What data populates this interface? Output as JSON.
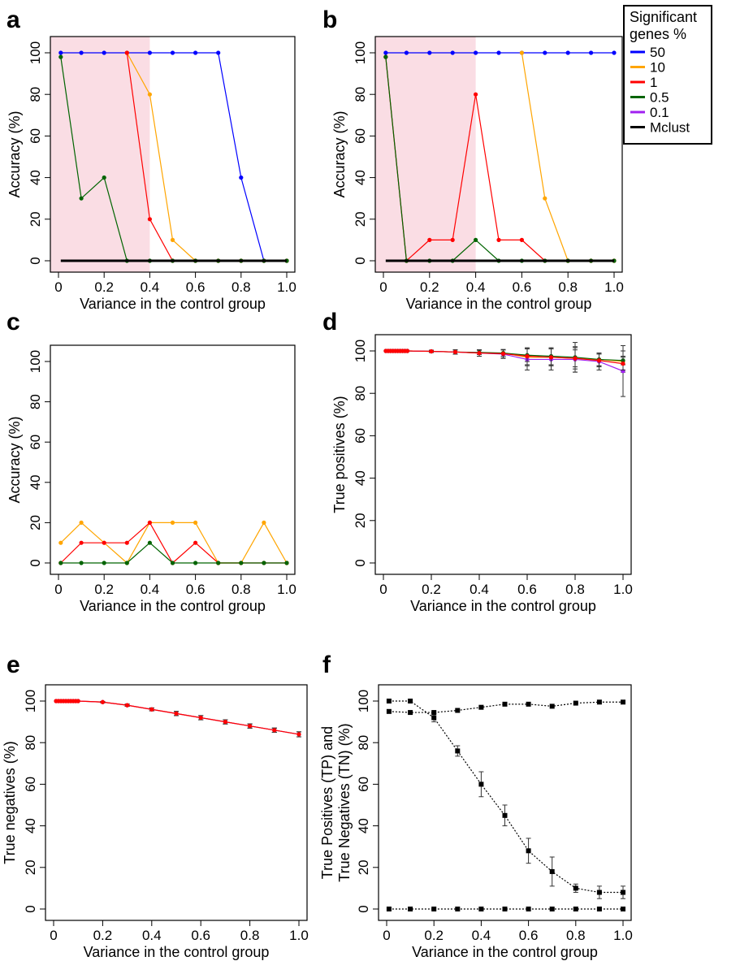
{
  "legend": {
    "title_line1": "Significant",
    "title_line2": "genes %",
    "entries": [
      {
        "label": "50",
        "color": "#0000ff"
      },
      {
        "label": "10",
        "color": "#ffa500"
      },
      {
        "label": "1",
        "color": "#ff0000"
      },
      {
        "label": "0.5",
        "color": "#006400"
      },
      {
        "label": "0.1",
        "color": "#a020f0"
      },
      {
        "label": "Mclust",
        "color": "#000000"
      }
    ]
  },
  "chart_data": [
    {
      "panel": "a",
      "type": "line",
      "xlabel": "Variance in the control group",
      "ylabel": "Accuracy (%)",
      "xlim": [
        0,
        1
      ],
      "ylim": [
        0,
        100
      ],
      "xticks": [
        "0",
        "0.2",
        "0.4",
        "0.6",
        "0.8",
        "1.0"
      ],
      "yticks": [
        "0",
        "20",
        "40",
        "60",
        "80",
        "100"
      ],
      "shaded_range": [
        0,
        0.4
      ],
      "series": [
        {
          "name": "50",
          "color": "#0000ff",
          "x": [
            0.01,
            0.1,
            0.2,
            0.3,
            0.4,
            0.5,
            0.6,
            0.7,
            0.8,
            0.9,
            1.0
          ],
          "y": [
            100,
            100,
            100,
            100,
            100,
            100,
            100,
            100,
            40,
            0,
            0
          ]
        },
        {
          "name": "10",
          "color": "#ffa500",
          "x": [
            0.3,
            0.4,
            0.5,
            0.6,
            0.7,
            0.8,
            0.9,
            1.0
          ],
          "y": [
            100,
            80,
            10,
            0,
            0,
            0,
            0,
            0
          ]
        },
        {
          "name": "1",
          "color": "#ff0000",
          "x": [
            0.3,
            0.4,
            0.5,
            0.6,
            0.7,
            0.8,
            0.9,
            1.0
          ],
          "y": [
            100,
            20,
            0,
            0,
            0,
            0,
            0,
            0
          ]
        },
        {
          "name": "0.5",
          "color": "#006400",
          "x": [
            0.01,
            0.1,
            0.2,
            0.3,
            0.4,
            0.5,
            0.6,
            0.7,
            0.8,
            0.9,
            1.0
          ],
          "y": [
            98,
            30,
            40,
            0,
            0,
            0,
            0,
            0,
            0,
            0,
            0
          ]
        },
        {
          "name": "Mclust",
          "color": "#000000",
          "x": [
            0.01,
            1.0
          ],
          "y": [
            0,
            0
          ],
          "thick": true
        }
      ]
    },
    {
      "panel": "b",
      "type": "line",
      "xlabel": "Variance in the control group",
      "ylabel": "Accuracy (%)",
      "xlim": [
        0,
        1
      ],
      "ylim": [
        0,
        100
      ],
      "xticks": [
        "0",
        "0.2",
        "0.4",
        "0.6",
        "0.8",
        "1.0"
      ],
      "yticks": [
        "0",
        "20",
        "40",
        "60",
        "80",
        "100"
      ],
      "shaded_range": [
        0,
        0.4
      ],
      "series": [
        {
          "name": "50",
          "color": "#0000ff",
          "x": [
            0.01,
            0.1,
            0.2,
            0.3,
            0.4,
            0.5,
            0.6,
            0.7,
            0.8,
            0.9,
            1.0
          ],
          "y": [
            100,
            100,
            100,
            100,
            100,
            100,
            100,
            100,
            100,
            100,
            100
          ]
        },
        {
          "name": "10",
          "color": "#ffa500",
          "x": [
            0.6,
            0.7,
            0.8,
            0.9,
            1.0
          ],
          "y": [
            100,
            30,
            0,
            0,
            0
          ]
        },
        {
          "name": "1",
          "color": "#ff0000",
          "x": [
            0.01,
            0.1,
            0.2,
            0.3,
            0.4,
            0.5,
            0.6,
            0.7,
            0.8,
            0.9,
            1.0
          ],
          "y": [
            98,
            0,
            10,
            10,
            80,
            10,
            10,
            0,
            0,
            0,
            0
          ]
        },
        {
          "name": "0.5",
          "color": "#006400",
          "x": [
            0.01,
            0.1,
            0.2,
            0.3,
            0.4,
            0.5,
            0.6,
            0.7,
            0.8,
            0.9,
            1.0
          ],
          "y": [
            98,
            0,
            0,
            0,
            10,
            0,
            0,
            0,
            0,
            0,
            0
          ]
        },
        {
          "name": "Mclust",
          "color": "#000000",
          "x": [
            0.01,
            1.0
          ],
          "y": [
            0,
            0
          ],
          "thick": true
        }
      ]
    },
    {
      "panel": "c",
      "type": "line",
      "xlabel": "Variance in the control group",
      "ylabel": "Accuracy (%)",
      "xlim": [
        0,
        1
      ],
      "ylim": [
        0,
        100
      ],
      "xticks": [
        "0",
        "0.2",
        "0.4",
        "0.6",
        "0.8",
        "1.0"
      ],
      "yticks": [
        "0",
        "20",
        "40",
        "60",
        "80",
        "100"
      ],
      "series": [
        {
          "name": "10",
          "color": "#ffa500",
          "x": [
            0.01,
            0.1,
            0.2,
            0.3,
            0.4,
            0.5,
            0.6,
            0.7,
            0.8,
            0.9,
            1.0
          ],
          "y": [
            10,
            20,
            10,
            0,
            20,
            20,
            20,
            0,
            0,
            20,
            0
          ]
        },
        {
          "name": "1",
          "color": "#ff0000",
          "x": [
            0.01,
            0.1,
            0.2,
            0.3,
            0.4,
            0.5,
            0.6,
            0.7,
            0.8,
            0.9,
            1.0
          ],
          "y": [
            0,
            10,
            10,
            10,
            20,
            0,
            10,
            0,
            0,
            0,
            0
          ]
        },
        {
          "name": "0.5",
          "color": "#006400",
          "x": [
            0.01,
            0.1,
            0.2,
            0.3,
            0.4,
            0.5,
            0.6,
            0.7,
            0.8,
            0.9,
            1.0
          ],
          "y": [
            0,
            0,
            0,
            0,
            10,
            0,
            0,
            0,
            0,
            0,
            0
          ]
        }
      ]
    },
    {
      "panel": "d",
      "type": "line",
      "xlabel": "Variance in the control group",
      "ylabel": "True positives (%)",
      "xlim": [
        0,
        1
      ],
      "ylim": [
        0,
        100
      ],
      "xticks": [
        "0",
        "0.2",
        "0.4",
        "0.6",
        "0.8",
        "1.0"
      ],
      "yticks": [
        "0",
        "20",
        "40",
        "60",
        "80",
        "100"
      ],
      "series": [
        {
          "name": "10",
          "color": "#ffa500",
          "x": [
            0.01,
            0.02,
            0.03,
            0.04,
            0.05,
            0.06,
            0.07,
            0.08,
            0.09,
            0.1,
            0.2,
            0.3,
            0.4,
            0.5,
            0.6,
            0.7,
            0.8,
            0.9,
            1.0
          ],
          "y": [
            100,
            100,
            100,
            100,
            100,
            100,
            100,
            100,
            100,
            100,
            99.8,
            99.5,
            99,
            99,
            97,
            97,
            96.5,
            96,
            95
          ],
          "err": [
            0,
            0,
            0,
            0,
            0,
            0,
            0,
            0,
            0,
            0,
            0.5,
            1,
            1.5,
            1.5,
            4,
            4,
            5,
            3,
            5
          ]
        },
        {
          "name": "0.5",
          "color": "#006400",
          "x": [
            0.01,
            0.02,
            0.03,
            0.04,
            0.05,
            0.06,
            0.07,
            0.08,
            0.09,
            0.1,
            0.2,
            0.3,
            0.4,
            0.5,
            0.6,
            0.7,
            0.8,
            0.9,
            1.0
          ],
          "y": [
            100,
            100,
            100,
            100,
            100,
            100,
            100,
            100,
            100,
            100,
            99.8,
            99.5,
            99.3,
            99,
            98,
            97.5,
            97,
            96,
            95.5
          ],
          "err": [
            0,
            0,
            0,
            0,
            0,
            0,
            0,
            0,
            0,
            0,
            0.5,
            1,
            1,
            1.5,
            3,
            4,
            7,
            3,
            2
          ]
        },
        {
          "name": "0.1",
          "color": "#a020f0",
          "x": [
            0.01,
            0.02,
            0.03,
            0.04,
            0.05,
            0.06,
            0.07,
            0.08,
            0.09,
            0.1,
            0.2,
            0.3,
            0.4,
            0.5,
            0.6,
            0.7,
            0.8,
            0.9,
            1.0
          ],
          "y": [
            100,
            100,
            100,
            100,
            100,
            100,
            100,
            100,
            100,
            100,
            99.8,
            99.5,
            99,
            98.5,
            96,
            96,
            96,
            95,
            90.5
          ],
          "err": [
            0,
            0,
            0,
            0,
            0,
            0,
            0,
            0,
            0,
            0,
            0.5,
            1,
            1.5,
            2,
            5,
            5,
            6,
            4,
            12
          ]
        },
        {
          "name": "1",
          "color": "#ff0000",
          "x": [
            0.01,
            0.02,
            0.03,
            0.04,
            0.05,
            0.06,
            0.07,
            0.08,
            0.09,
            0.1,
            0.2,
            0.3,
            0.4,
            0.5,
            0.6,
            0.7,
            0.8,
            0.9,
            1.0
          ],
          "y": [
            100,
            100,
            100,
            100,
            100,
            100,
            100,
            100,
            100,
            100,
            99.8,
            99.5,
            99,
            98.7,
            97.5,
            97,
            96.5,
            95.5,
            94
          ],
          "err": [
            0,
            0,
            0,
            0,
            0,
            0,
            0,
            0,
            0,
            0,
            0.5,
            1,
            1.5,
            2,
            4,
            4,
            4,
            3,
            3
          ]
        }
      ]
    },
    {
      "panel": "e",
      "type": "line",
      "xlabel": "Variance in the control group",
      "ylabel": "True negatives (%)",
      "xlim": [
        0,
        1
      ],
      "ylim": [
        0,
        100
      ],
      "xticks": [
        "0",
        "0.2",
        "0.4",
        "0.6",
        "0.8",
        "1.0"
      ],
      "yticks": [
        "0",
        "20",
        "40",
        "60",
        "80",
        "100"
      ],
      "series": [
        {
          "name": "10",
          "color": "#ffa500",
          "x": [
            0.01,
            0.02,
            0.03,
            0.04,
            0.05,
            0.06,
            0.07,
            0.08,
            0.09,
            0.1,
            0.2,
            0.3,
            0.4,
            0.5,
            0.6,
            0.7,
            0.8,
            0.9,
            1.0
          ],
          "y": [
            100,
            100,
            100,
            100,
            100,
            100,
            100,
            100,
            100,
            100,
            99.5,
            98,
            96,
            94,
            92,
            90,
            88,
            86,
            84
          ],
          "err": [
            0,
            0,
            0,
            0,
            0,
            0,
            0,
            0,
            0,
            0,
            0.3,
            0.5,
            0.7,
            1,
            1,
            1,
            1,
            1,
            1.2
          ]
        },
        {
          "name": "0.1",
          "color": "#a020f0",
          "x": [
            0.01,
            0.02,
            0.03,
            0.04,
            0.05,
            0.06,
            0.07,
            0.08,
            0.09,
            0.1,
            0.2,
            0.3,
            0.4,
            0.5,
            0.6,
            0.7,
            0.8,
            0.9,
            1.0
          ],
          "y": [
            100,
            100,
            100,
            100,
            100,
            100,
            100,
            100,
            100,
            100,
            99.5,
            98,
            96,
            94,
            92,
            90,
            88,
            86,
            84
          ],
          "err": [
            0,
            0,
            0,
            0,
            0,
            0,
            0,
            0,
            0,
            0,
            0.3,
            0.5,
            0.7,
            1,
            1,
            1,
            1,
            1,
            1.2
          ]
        },
        {
          "name": "1",
          "color": "#ff0000",
          "x": [
            0.01,
            0.02,
            0.03,
            0.04,
            0.05,
            0.06,
            0.07,
            0.08,
            0.09,
            0.1,
            0.2,
            0.3,
            0.4,
            0.5,
            0.6,
            0.7,
            0.8,
            0.9,
            1.0
          ],
          "y": [
            100,
            100,
            100,
            100,
            100,
            100,
            100,
            100,
            100,
            100,
            99.5,
            98,
            96,
            94,
            92,
            90,
            88,
            86,
            84
          ],
          "err": [
            0,
            0,
            0,
            0,
            0,
            0,
            0,
            0,
            0,
            0,
            0.3,
            0.5,
            0.7,
            1,
            1,
            1,
            1,
            1,
            1.2
          ]
        }
      ]
    },
    {
      "panel": "f",
      "type": "line",
      "xlabel": "Variance in the control group",
      "ylabel_line1": "True Positives (TP) and",
      "ylabel_line2": "True Negatives (TN) (%)",
      "xlim": [
        0,
        1
      ],
      "ylim": [
        0,
        100
      ],
      "xticks": [
        "0",
        "0.2",
        "0.4",
        "0.6",
        "0.8",
        "1.0"
      ],
      "yticks": [
        "0",
        "20",
        "40",
        "60",
        "80",
        "100"
      ],
      "series": [
        {
          "color": "#000000",
          "dotted": true,
          "x": [
            0.01,
            0.1,
            0.2,
            0.3,
            0.4,
            0.5,
            0.6,
            0.7,
            0.8,
            0.9,
            1.0
          ],
          "y": [
            100,
            100,
            92,
            76,
            60,
            45,
            28,
            18,
            10,
            8,
            8
          ],
          "err": [
            0,
            0,
            2,
            2.5,
            6,
            5,
            6,
            7,
            2,
            3,
            3
          ]
        },
        {
          "color": "#000000",
          "dotted": true,
          "x": [
            0.01,
            0.1,
            0.2,
            0.3,
            0.4,
            0.5,
            0.6,
            0.7,
            0.8,
            0.9,
            1.0
          ],
          "y": [
            95,
            94.5,
            94.5,
            95.5,
            97,
            98.5,
            98.5,
            97.5,
            99,
            99.5,
            99.5
          ],
          "err": [
            0,
            0,
            0,
            0,
            0,
            0,
            0,
            0,
            0,
            0,
            0
          ]
        },
        {
          "color": "#000000",
          "dotted": true,
          "x": [
            0.01,
            0.1,
            0.2,
            0.3,
            0.4,
            0.5,
            0.6,
            0.7,
            0.8,
            0.9,
            1.0
          ],
          "y": [
            0,
            0,
            0,
            0,
            0,
            0,
            0,
            0,
            0,
            0,
            0
          ],
          "err": [
            0,
            0,
            0,
            0,
            0,
            0,
            0,
            0,
            0,
            0,
            0
          ]
        }
      ]
    }
  ]
}
